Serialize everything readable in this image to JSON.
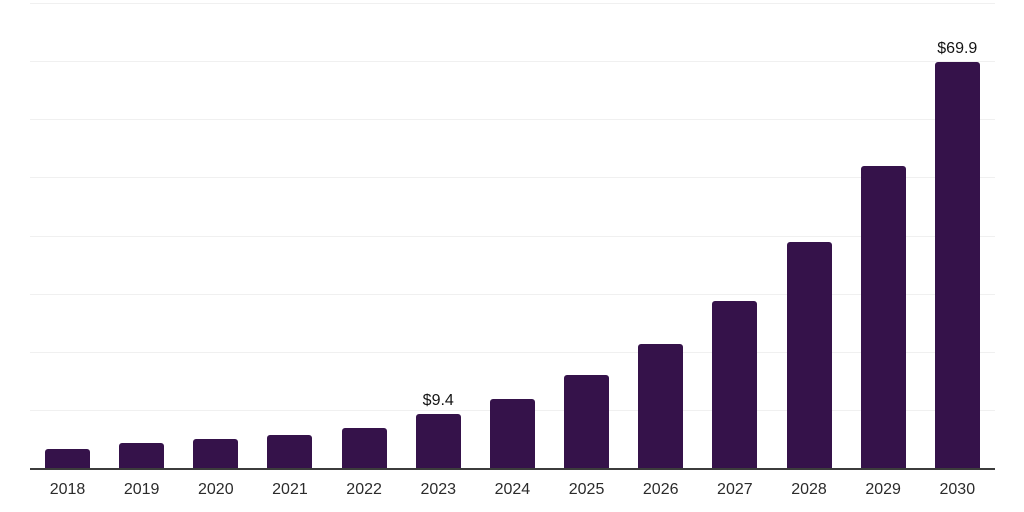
{
  "chart_data": {
    "type": "bar",
    "title": "",
    "xlabel": "",
    "ylabel": "",
    "categories": [
      "2018",
      "2019",
      "2020",
      "2021",
      "2022",
      "2023",
      "2024",
      "2025",
      "2026",
      "2027",
      "2028",
      "2029",
      "2030"
    ],
    "values": [
      3.4,
      4.4,
      5.1,
      5.9,
      7.1,
      9.4,
      12.0,
      16.2,
      21.5,
      28.9,
      39.0,
      52.1,
      69.9
    ],
    "data_labels": {
      "2023": "$9.4",
      "2030": "$69.9"
    },
    "ylim": [
      0,
      80
    ],
    "gridline_step": 10,
    "grid": true,
    "y_tick_labels_shown": false,
    "legend": "none",
    "colors": {
      "bar": "#35124a",
      "gridline": "#f0f0f0",
      "axis": "#3c3c3c",
      "value_label": "#141414",
      "tick_label": "#2b2b2b",
      "background": "#ffffff"
    }
  }
}
